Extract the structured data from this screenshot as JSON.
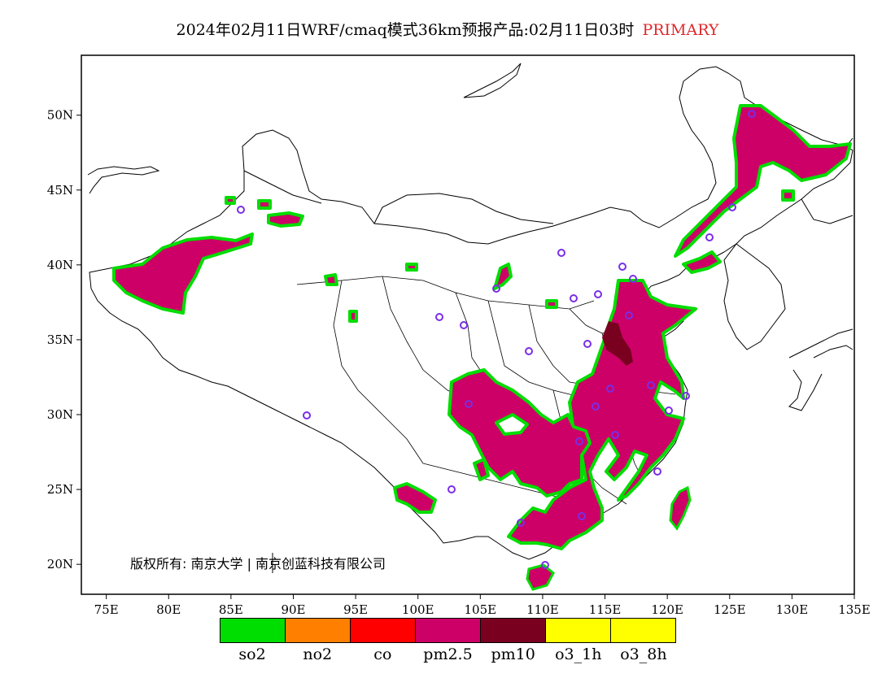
{
  "title": {
    "main": "2024年02月11日WRF/cmaq模式36km预报产品:02月11日03时",
    "tag": "PRIMARY",
    "tag_color": "#e0282c"
  },
  "map": {
    "lon_range": [
      73,
      135
    ],
    "lat_range": [
      18,
      54
    ],
    "lon_ticks": [
      "75E",
      "80E",
      "85E",
      "90E",
      "95E",
      "100E",
      "105E",
      "110E",
      "115E",
      "120E",
      "125E",
      "130E",
      "135E"
    ],
    "lat_ticks": [
      "20N",
      "25N",
      "30N",
      "35N",
      "40N",
      "45N",
      "50N"
    ],
    "copyright": "版权所有: 南京大学 | 南京创蓝科技有限公司"
  },
  "legend": {
    "items": [
      {
        "label": "so2",
        "color": "#00dd00"
      },
      {
        "label": "no2",
        "color": "#ff8000"
      },
      {
        "label": "co",
        "color": "#ff0000"
      },
      {
        "label": "pm2.5",
        "color": "#cc0066"
      },
      {
        "label": "pm10",
        "color": "#7a0020"
      },
      {
        "label": "o3_1h",
        "color": "#ffff00"
      },
      {
        "label": "o3_8h",
        "color": "#ffff00"
      }
    ]
  }
}
